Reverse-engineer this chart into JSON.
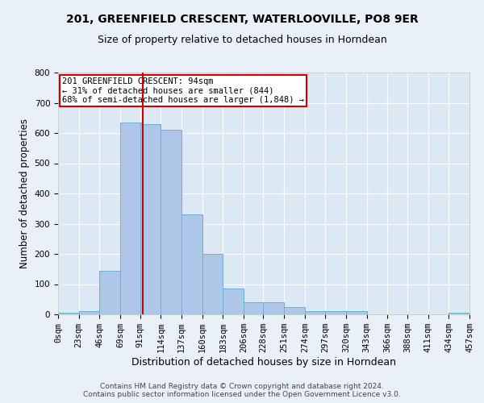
{
  "title": "201, GREENFIELD CRESCENT, WATERLOOVILLE, PO8 9ER",
  "subtitle": "Size of property relative to detached houses in Horndean",
  "xlabel": "Distribution of detached houses by size in Horndean",
  "ylabel": "Number of detached properties",
  "bar_color": "#aec6e8",
  "bar_edge_color": "#6baed6",
  "background_color": "#dde8f5",
  "fig_background_color": "#eaf0f8",
  "grid_color": "#ffffff",
  "bin_edges": [
    0,
    23,
    46,
    69,
    91,
    114,
    137,
    160,
    183,
    206,
    228,
    251,
    274,
    297,
    320,
    343,
    366,
    388,
    411,
    434,
    457
  ],
  "bar_heights": [
    5,
    10,
    143,
    635,
    630,
    610,
    330,
    200,
    85,
    40,
    40,
    25,
    12,
    12,
    10,
    0,
    0,
    0,
    0,
    5
  ],
  "tick_labels": [
    "0sqm",
    "23sqm",
    "46sqm",
    "69sqm",
    "91sqm",
    "114sqm",
    "137sqm",
    "160sqm",
    "183sqm",
    "206sqm",
    "228sqm",
    "251sqm",
    "274sqm",
    "297sqm",
    "320sqm",
    "343sqm",
    "366sqm",
    "388sqm",
    "411sqm",
    "434sqm",
    "457sqm"
  ],
  "property_size": 94,
  "property_label": "201 GREENFIELD CRESCENT: 94sqm",
  "annotation_line1": "← 31% of detached houses are smaller (844)",
  "annotation_line2": "68% of semi-detached houses are larger (1,848) →",
  "vline_color": "#cc0000",
  "annotation_box_color": "#ffffff",
  "annotation_box_edge": "#cc0000",
  "footer_line1": "Contains HM Land Registry data © Crown copyright and database right 2024.",
  "footer_line2": "Contains public sector information licensed under the Open Government Licence v3.0.",
  "ylim": [
    0,
    800
  ],
  "title_fontsize": 10,
  "subtitle_fontsize": 9,
  "axis_label_fontsize": 8.5,
  "tick_fontsize": 7.5,
  "footer_fontsize": 6.5,
  "annot_fontsize": 7.5
}
